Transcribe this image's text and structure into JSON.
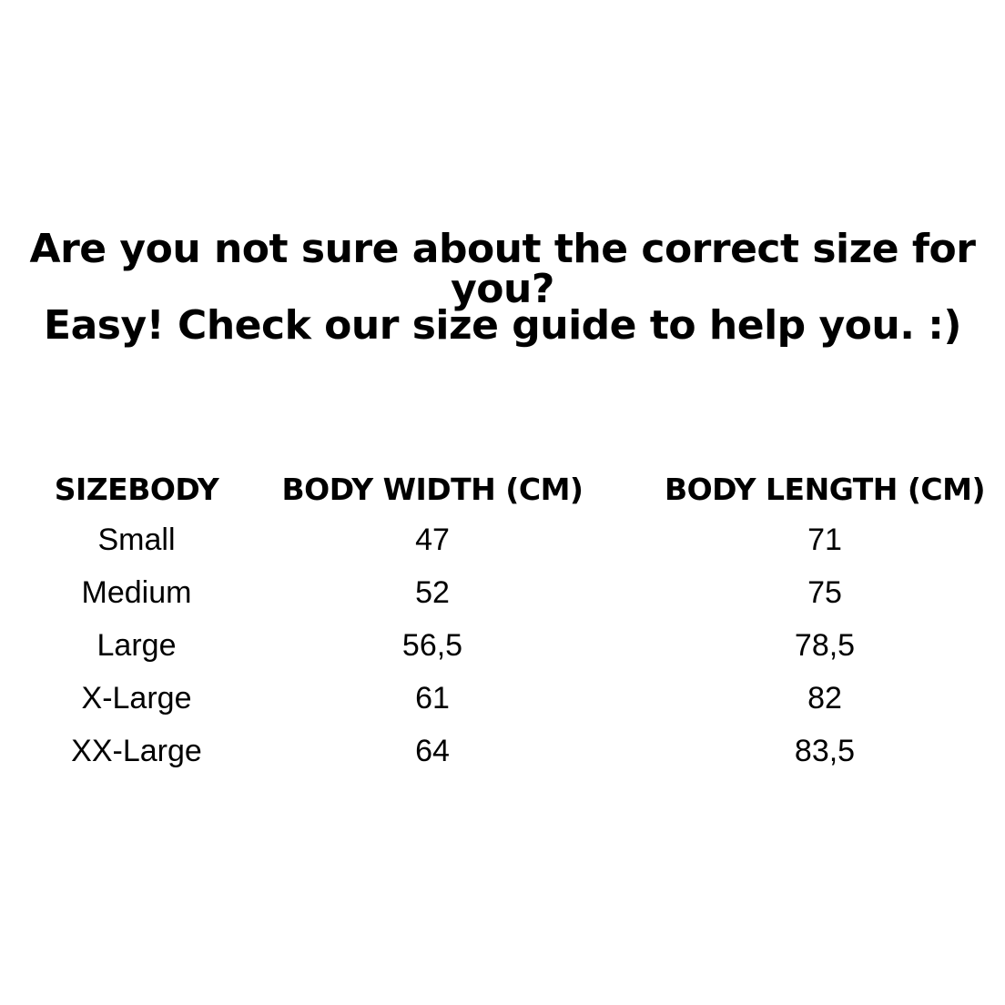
{
  "heading": {
    "line1": "Are you not sure about the correct size for you?",
    "line2": "Easy! Check our size guide to help you. :)"
  },
  "table": {
    "headers": [
      "SIZEBODY",
      "BODY WIDTH (CM)",
      "BODY LENGTH (CM)"
    ],
    "rows": [
      [
        "Small",
        "47",
        "71"
      ],
      [
        "Medium",
        "52",
        "75"
      ],
      [
        "Large",
        "56,5",
        "78,5"
      ],
      [
        "X-Large",
        "61",
        "82"
      ],
      [
        "XX-Large",
        "64",
        "83,5"
      ]
    ]
  }
}
